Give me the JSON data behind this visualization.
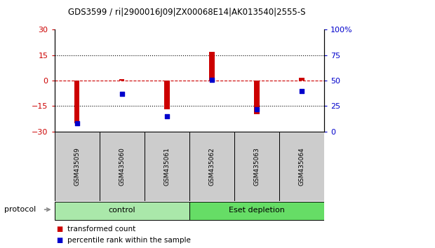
{
  "title": "GDS3599 / ri|2900016J09|ZX00068E14|AK013540|2555-S",
  "samples": [
    "GSM435059",
    "GSM435060",
    "GSM435061",
    "GSM435062",
    "GSM435063",
    "GSM435064"
  ],
  "red_values": [
    -25.0,
    0.8,
    -17.0,
    17.0,
    -20.0,
    1.5
  ],
  "blue_values": [
    8.0,
    37.0,
    15.0,
    51.0,
    22.0,
    40.0
  ],
  "ylim_left": [
    -30,
    30
  ],
  "ylim_right": [
    0,
    100
  ],
  "yticks_left": [
    -30,
    -15,
    0,
    15,
    30
  ],
  "yticks_right": [
    0,
    25,
    50,
    75,
    100
  ],
  "yticklabels_right": [
    "0",
    "25",
    "50",
    "75",
    "100%"
  ],
  "red_color": "#cc0000",
  "blue_color": "#0000cc",
  "bar_width": 0.12,
  "legend_red": "transformed count",
  "legend_blue": "percentile rank within the sample",
  "group_control_color": "#aae8aa",
  "group_eset_color": "#66dd66",
  "sample_box_color": "#cccccc"
}
